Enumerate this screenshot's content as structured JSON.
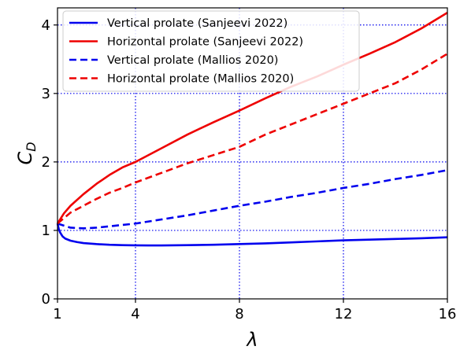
{
  "chart_data": {
    "type": "line",
    "xlabel": "λ",
    "ylabel": "C_D",
    "ylabel_main": "C",
    "ylabel_sub": "D",
    "xlim": [
      1,
      16
    ],
    "ylim": [
      0,
      4.25
    ],
    "xticks": [
      1,
      4,
      8,
      12,
      16
    ],
    "yticks": [
      0,
      1,
      2,
      3,
      4
    ],
    "grid": true,
    "grid_lines_x": [
      4,
      8,
      12
    ],
    "grid_lines_y": [
      1,
      2,
      3,
      4
    ],
    "legend_position": "top-left",
    "series": [
      {
        "name": "Vertical prolate (Sanjeevi 2022)",
        "color": "#0000ee",
        "dash": "solid",
        "x": [
          1,
          1.05,
          1.1,
          1.2,
          1.3,
          1.5,
          1.75,
          2,
          2.5,
          3,
          3.5,
          4,
          4.5,
          5,
          6,
          7,
          8,
          9,
          10,
          11,
          12,
          13,
          14,
          15,
          16
        ],
        "y": [
          1.1,
          1.02,
          0.97,
          0.91,
          0.88,
          0.85,
          0.83,
          0.815,
          0.8,
          0.79,
          0.785,
          0.782,
          0.78,
          0.78,
          0.785,
          0.79,
          0.8,
          0.81,
          0.825,
          0.84,
          0.855,
          0.865,
          0.875,
          0.885,
          0.9
        ]
      },
      {
        "name": "Horizontal prolate (Sanjeevi 2022)",
        "color": "#ee0000",
        "dash": "solid",
        "x": [
          1,
          1.25,
          1.5,
          2,
          2.5,
          3,
          3.5,
          4,
          5,
          6,
          7,
          8,
          9,
          10,
          11,
          12,
          13,
          14,
          15,
          16
        ],
        "y": [
          1.1,
          1.25,
          1.36,
          1.53,
          1.68,
          1.81,
          1.92,
          2.0,
          2.2,
          2.4,
          2.58,
          2.75,
          2.93,
          3.1,
          3.25,
          3.42,
          3.58,
          3.75,
          3.95,
          4.18
        ]
      },
      {
        "name": "Vertical prolate (Mallios 2020)",
        "color": "#0000ee",
        "dash": "dashed",
        "x": [
          1,
          1.5,
          2,
          2.5,
          3,
          3.5,
          4,
          5,
          6,
          7,
          8,
          9,
          10,
          11,
          12,
          13,
          14,
          15,
          16
        ],
        "y": [
          1.1,
          1.04,
          1.03,
          1.04,
          1.06,
          1.08,
          1.1,
          1.16,
          1.22,
          1.29,
          1.36,
          1.42,
          1.49,
          1.55,
          1.62,
          1.68,
          1.75,
          1.81,
          1.88
        ]
      },
      {
        "name": "Horizontal prolate (Mallios 2020)",
        "color": "#ee0000",
        "dash": "dashed",
        "x": [
          1,
          1.25,
          1.5,
          2,
          2.5,
          3,
          3.5,
          4,
          5,
          6,
          7,
          8,
          9,
          10,
          11,
          12,
          13,
          14,
          15,
          16
        ],
        "y": [
          1.1,
          1.18,
          1.26,
          1.36,
          1.46,
          1.55,
          1.62,
          1.7,
          1.84,
          1.98,
          2.1,
          2.22,
          2.4,
          2.55,
          2.7,
          2.85,
          3.0,
          3.15,
          3.35,
          3.58
        ]
      }
    ]
  }
}
